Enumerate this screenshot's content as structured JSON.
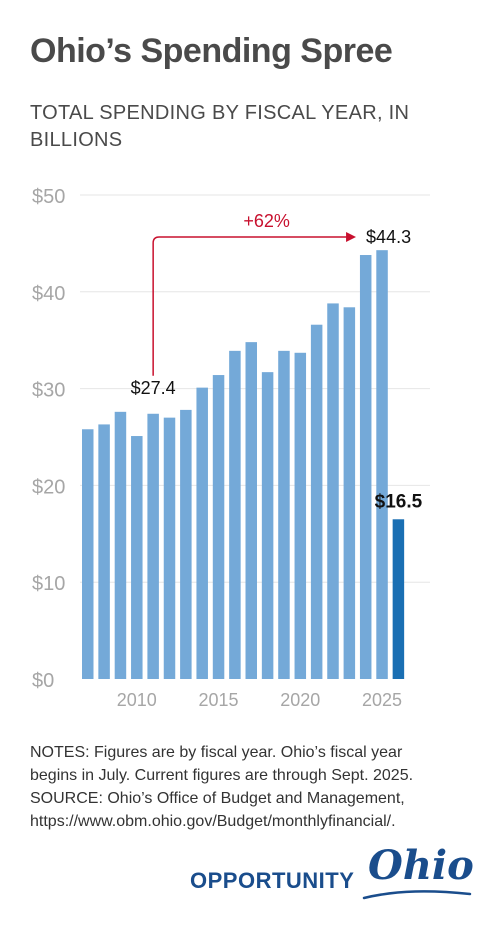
{
  "title": "Ohio’s Spending Spree",
  "subtitle": "TOTAL SPENDING BY FISCAL YEAR, IN BILLIONS",
  "notes": [
    "NOTES: Figures are by fiscal year. Ohio’s fiscal year",
    "begins in July. Current figures are through Sept. 2025.",
    "SOURCE: Ohio’s Office of Budget and Management,",
    "https://www.obm.ohio.gov/Budget/monthlyfinancial/."
  ],
  "brand": {
    "word": "OPPORTUNITY",
    "script": "Ohio"
  },
  "chart_data": {
    "type": "bar",
    "x": [
      2007,
      2008,
      2009,
      2010,
      2011,
      2012,
      2013,
      2014,
      2015,
      2016,
      2017,
      2018,
      2019,
      2020,
      2021,
      2022,
      2023,
      2024,
      2025,
      2026
    ],
    "values": [
      25.8,
      26.3,
      27.6,
      25.1,
      27.4,
      27.0,
      27.8,
      30.1,
      31.4,
      33.9,
      34.8,
      31.7,
      33.9,
      33.7,
      36.6,
      38.8,
      38.4,
      43.8,
      44.3,
      16.5
    ],
    "highlight_index": 19,
    "colors": {
      "bar": "#74a9d8",
      "highlight": "#1a6fb3",
      "annotation": "#c8102e",
      "grid": "#e6e6e6",
      "tick": "#a6a6a6"
    },
    "ylim": [
      0,
      50
    ],
    "yticks": [
      0,
      10,
      20,
      30,
      40,
      50
    ],
    "ytick_labels": [
      "$0",
      "$10",
      "$20",
      "$30",
      "$40",
      "$50"
    ],
    "xticks": [
      2010,
      2015,
      2020,
      2025
    ],
    "xtick_labels": [
      "2010",
      "2015",
      "2020",
      "2025"
    ],
    "grid": true,
    "annotations": {
      "start_label": "$27.4",
      "end_label": "$44.3",
      "change_label": "+62%",
      "current_label": "$16.5"
    }
  }
}
